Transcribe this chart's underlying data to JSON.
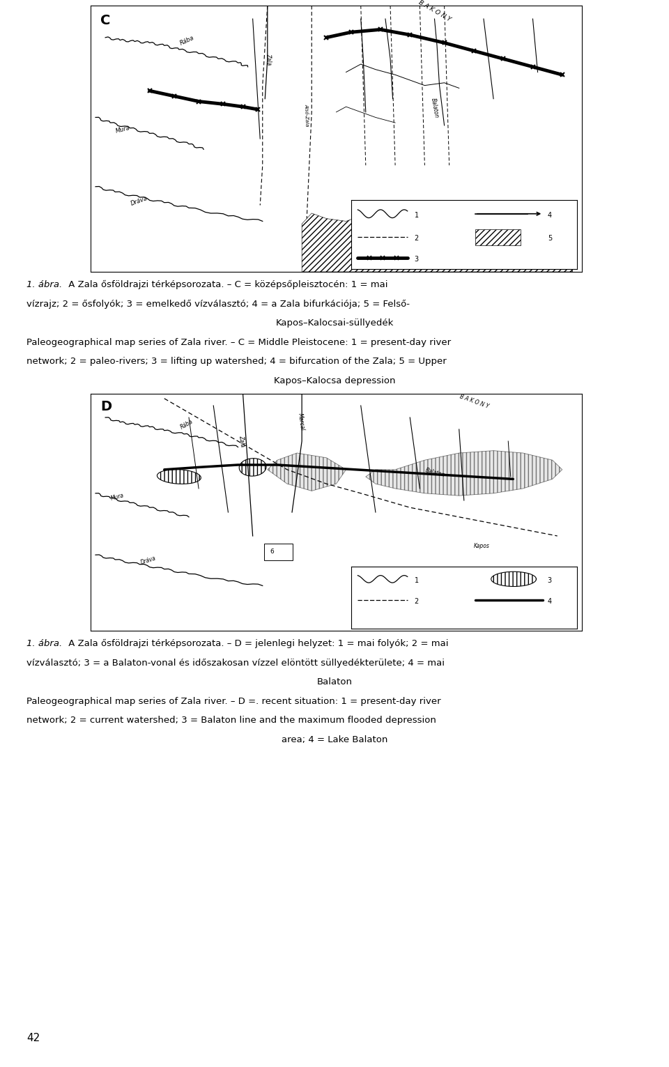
{
  "background_color": "#ffffff",
  "fig_width": 9.6,
  "fig_height": 15.31,
  "map_c_label": "C",
  "map_d_label": "D",
  "text_color": "#000000",
  "map_border_color": "#000000",
  "page_number": "42",
  "cap_c_line1_it": "1. ábra.",
  "cap_c_line1": " A Zala ősföldrajzi térképsorozata. – C = középsőpleisztocén: 1 = mai",
  "cap_c_line2": "vízrajz; 2 = ősfolyók; 3 = emelkedő vízválasztó; 4 = a Zala bifurkációja; 5 = Felső-",
  "cap_c_line3": "Kapos–Kalocsai-süllyedék",
  "cap_c_line4": "Paleogeographical map series of Zala river. – C = Middle Pleistocene: 1 = present-day river",
  "cap_c_line5": "network; 2 = paleo-rivers; 3 = lifting up watershed; 4 = bifurcation of the Zala; 5 = Upper",
  "cap_c_line6": "Kapos–Kalocsa depression",
  "cap_d_line1_it": "1. ábra.",
  "cap_d_line1": " A Zala ősföldrajzi térképsorozata. – D = jelenlegi helyzet: 1 = mai folyók; 2 = mai",
  "cap_d_line2": "vízválasztó; 3 = a Balaton-vonal és időszakosan vízzel elöntött süllyedékterülete; 4 = mai",
  "cap_d_line3": "Balaton",
  "cap_d_line4": "Paleogeographical map series of Zala river. – D =. recent situation: 1 = present-day river",
  "cap_d_line5": "network; 2 = current watershed; 3 = Balaton line and the maximum flooded depression",
  "cap_d_line6": "area; 4 = Lake Balaton"
}
